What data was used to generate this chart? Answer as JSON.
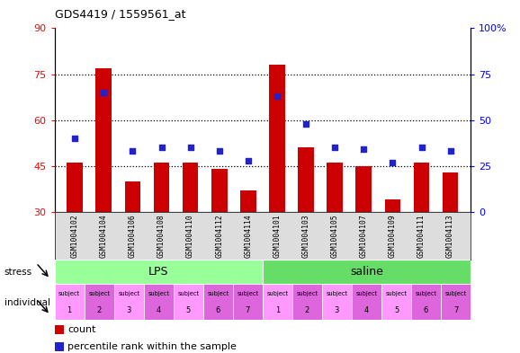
{
  "title": "GDS4419 / 1559561_at",
  "samples": [
    "GSM1004102",
    "GSM1004104",
    "GSM1004106",
    "GSM1004108",
    "GSM1004110",
    "GSM1004112",
    "GSM1004114",
    "GSM1004101",
    "GSM1004103",
    "GSM1004105",
    "GSM1004107",
    "GSM1004109",
    "GSM1004111",
    "GSM1004113"
  ],
  "counts": [
    46,
    77,
    40,
    46,
    46,
    44,
    37,
    78,
    51,
    46,
    45,
    34,
    46,
    43
  ],
  "percentiles": [
    40,
    65,
    33,
    35,
    35,
    33,
    28,
    63,
    48,
    35,
    34,
    27,
    35,
    33
  ],
  "ylim_left": [
    30,
    90
  ],
  "ylim_right": [
    0,
    100
  ],
  "yticks_left": [
    30,
    45,
    60,
    75,
    90
  ],
  "yticks_right": [
    0,
    25,
    50,
    75,
    100
  ],
  "ytick_right_labels": [
    "0",
    "25",
    "50",
    "75",
    "100%"
  ],
  "bar_color": "#cc0000",
  "dot_color": "#2222cc",
  "lps_color": "#99ff99",
  "saline_color": "#66dd66",
  "indiv_color_light": "#ff99ff",
  "indiv_color_dark": "#dd66dd",
  "grid_dotted_at": [
    45,
    60,
    75
  ],
  "individual_labels_top": [
    "subject",
    "subject",
    "subject",
    "subject",
    "subject",
    "subject",
    "subject",
    "subject",
    "subject",
    "subject",
    "subject",
    "subject",
    "subject",
    "subject"
  ],
  "individual_labels_num": [
    "1",
    "2",
    "3",
    "4",
    "5",
    "6",
    "7",
    "1",
    "2",
    "3",
    "4",
    "5",
    "6",
    "7"
  ]
}
